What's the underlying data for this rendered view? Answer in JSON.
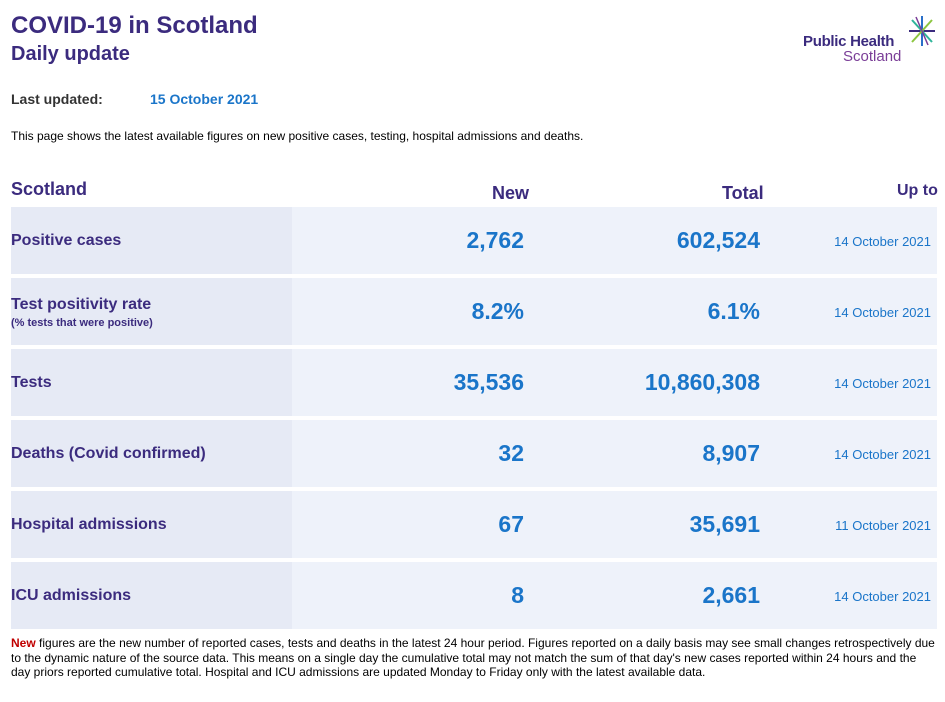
{
  "header": {
    "title": "COVID-19 in Scotland",
    "subtitle": "Daily update",
    "logo": {
      "line1": "Public Health",
      "line2": "Scotland"
    }
  },
  "last_updated": {
    "label": "Last updated:",
    "value": "15 October 2021"
  },
  "intro": "This page shows the latest available figures on new positive cases, testing, hospital admissions and deaths.",
  "table": {
    "headers": {
      "area": "Scotland",
      "new": "New",
      "total": "Total",
      "up_to": "Up to"
    },
    "rows": [
      {
        "label": "Positive cases",
        "sublabel": "",
        "new": "2,762",
        "total": "602,524",
        "date": "14 October 2021"
      },
      {
        "label": "Test positivity rate",
        "sublabel": "(% tests that were positive)",
        "new": "8.2%",
        "total": "6.1%",
        "date": "14 October 2021"
      },
      {
        "label": "Tests",
        "sublabel": "",
        "new": "35,536",
        "total": "10,860,308",
        "date": "14 October 2021"
      },
      {
        "label": "Deaths (Covid confirmed)",
        "sublabel": "",
        "new": "32",
        "total": "8,907",
        "date": "14 October 2021"
      },
      {
        "label": "Hospital admissions",
        "sublabel": "",
        "new": "67",
        "total": "35,691",
        "date": "11 October 2021"
      },
      {
        "label": "ICU admissions",
        "sublabel": "",
        "new": "8",
        "total": "2,661",
        "date": "14 October 2021"
      }
    ]
  },
  "footnote": {
    "highlight": "New",
    "text": " figures are the new number of reported cases, tests and deaths in the latest 24 hour period. Figures reported on a daily basis may see small changes retrospectively due to the dynamic nature of the source data. This means on a single day the cumulative total may not match the sum of that day's new cases reported within 24 hours and the day priors reported cumulative total. Hospital and ICU admissions are updated Monday to Friday only with the latest available data."
  },
  "colors": {
    "purple": "#3b2b7e",
    "blue": "#1a75c9",
    "red": "#c00000",
    "row_bg": "#eef2fa",
    "label_bg": "#e6eaf5"
  },
  "icons": [
    "public-health-scotland-star-icon"
  ]
}
